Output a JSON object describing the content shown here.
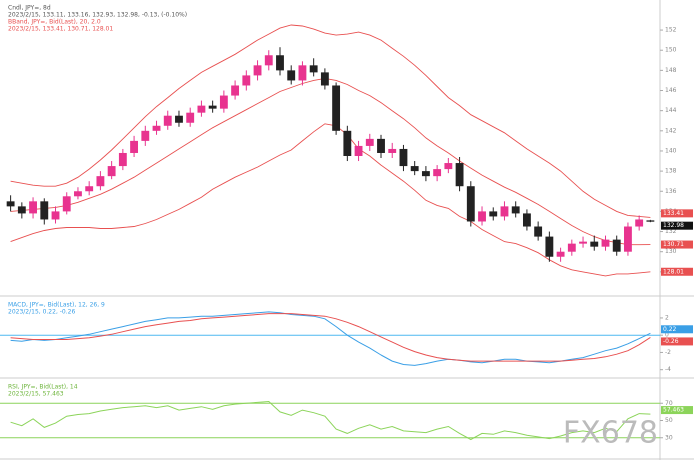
{
  "chart_data": [
    {
      "type": "candlestick",
      "title": "Cndl, JPY=, 8d",
      "subtitle": "2023/2/15, 133.11, 133.16, 132.93, 132.98, -0.13, (-0.10%)",
      "color_up": "#e8338f",
      "color_down": "#222222",
      "open": [
        135.0,
        134.5,
        133.8,
        135.0,
        133.2,
        134.0,
        135.5,
        136.0,
        136.5,
        137.5,
        138.5,
        139.8,
        141.0,
        142.0,
        142.5,
        143.5,
        142.8,
        143.8,
        144.5,
        144.2,
        145.5,
        146.5,
        147.5,
        148.5,
        149.5,
        148.0,
        147.0,
        148.5,
        147.8,
        146.5,
        142.0,
        139.5,
        140.5,
        141.2,
        139.8,
        140.2,
        138.5,
        138.0,
        137.5,
        138.2,
        138.8,
        136.5,
        133.0,
        134.0,
        133.5,
        134.5,
        133.8,
        132.5,
        131.5,
        129.5,
        130.0,
        130.8,
        131.0,
        130.5,
        131.2,
        130.0,
        132.5,
        133.11
      ],
      "high": [
        135.6,
        134.9,
        135.4,
        135.3,
        134.5,
        135.9,
        136.4,
        137.0,
        138.0,
        139.0,
        140.2,
        141.5,
        142.5,
        143.0,
        144.0,
        144.0,
        144.3,
        145.0,
        145.0,
        146.0,
        147.0,
        148.0,
        149.0,
        150.0,
        150.3,
        148.5,
        148.9,
        149.2,
        148.2,
        146.8,
        142.5,
        141.0,
        141.7,
        141.6,
        140.8,
        140.6,
        139.0,
        138.5,
        138.6,
        139.3,
        139.4,
        137.0,
        134.5,
        134.4,
        135.0,
        135.0,
        134.2,
        133.0,
        132.0,
        130.4,
        131.2,
        131.5,
        131.6,
        131.6,
        131.6,
        132.9,
        133.6,
        133.16
      ],
      "low": [
        134.0,
        133.3,
        133.3,
        132.7,
        132.8,
        133.7,
        135.2,
        135.6,
        136.1,
        137.2,
        138.1,
        139.4,
        140.5,
        141.6,
        142.1,
        142.4,
        142.4,
        143.4,
        143.8,
        143.8,
        145.1,
        146.0,
        147.0,
        148.0,
        147.5,
        146.6,
        146.5,
        147.4,
        146.1,
        141.6,
        139.0,
        139.0,
        140.0,
        139.3,
        139.3,
        138.0,
        137.6,
        137.0,
        137.0,
        137.8,
        136.0,
        132.5,
        132.6,
        133.1,
        133.1,
        133.4,
        132.1,
        131.1,
        129.0,
        129.0,
        129.6,
        130.4,
        130.1,
        130.1,
        129.6,
        129.6,
        132.1,
        132.93
      ],
      "close": [
        134.5,
        133.8,
        135.0,
        133.2,
        134.0,
        135.5,
        136.0,
        136.5,
        137.5,
        138.5,
        139.8,
        141.0,
        142.0,
        142.5,
        143.5,
        142.8,
        143.8,
        144.5,
        144.2,
        145.5,
        146.5,
        147.5,
        148.5,
        149.5,
        148.0,
        147.0,
        148.5,
        147.8,
        146.5,
        142.0,
        139.5,
        140.5,
        141.2,
        139.8,
        140.2,
        138.5,
        138.0,
        137.5,
        138.2,
        138.8,
        136.5,
        133.0,
        134.0,
        133.5,
        134.5,
        133.8,
        132.5,
        131.5,
        129.5,
        130.0,
        130.8,
        131.0,
        130.5,
        131.2,
        130.0,
        132.5,
        133.2,
        132.98
      ],
      "bands": {
        "name": "BBand, JPY=, Bid(Last), 20, 2.0",
        "info": "2023/2/15, 133.41, 130.71, 128.01",
        "color": "#e85050",
        "upper": [
          137.0,
          136.8,
          136.6,
          136.5,
          136.5,
          136.8,
          137.4,
          138.2,
          139.1,
          140.1,
          141.2,
          142.3,
          143.4,
          144.4,
          145.3,
          146.2,
          147.0,
          147.8,
          148.4,
          149.0,
          149.6,
          150.3,
          151.0,
          151.6,
          152.2,
          152.5,
          152.4,
          152.1,
          151.7,
          151.5,
          151.6,
          151.8,
          151.5,
          151.0,
          150.2,
          149.4,
          148.5,
          147.5,
          146.4,
          145.3,
          144.5,
          143.6,
          143.0,
          142.4,
          141.8,
          141.0,
          140.2,
          139.5,
          138.8,
          138.0,
          137.0,
          136.0,
          135.2,
          134.6,
          134.0,
          133.6,
          133.5,
          133.41
        ],
        "mid": [
          134.0,
          134.1,
          134.2,
          134.3,
          134.4,
          134.6,
          134.9,
          135.3,
          135.7,
          136.2,
          136.8,
          137.4,
          138.1,
          138.8,
          139.5,
          140.2,
          140.9,
          141.6,
          142.3,
          142.9,
          143.5,
          144.1,
          144.7,
          145.3,
          145.9,
          146.3,
          146.7,
          147.0,
          147.2,
          147.0,
          146.6,
          146.0,
          145.5,
          144.8,
          144.0,
          143.2,
          142.3,
          141.3,
          140.5,
          139.8,
          139.0,
          138.3,
          137.6,
          137.0,
          136.4,
          135.9,
          135.3,
          134.7,
          134.0,
          133.3,
          132.6,
          132.0,
          131.5,
          131.1,
          130.9,
          130.7,
          130.7,
          130.71
        ],
        "lower": [
          131.0,
          131.4,
          131.8,
          132.1,
          132.3,
          132.4,
          132.4,
          132.4,
          132.3,
          132.3,
          132.4,
          132.5,
          132.8,
          133.2,
          133.7,
          134.2,
          134.8,
          135.4,
          136.2,
          136.8,
          137.4,
          137.9,
          138.4,
          139.0,
          139.6,
          140.1,
          141.0,
          141.9,
          142.7,
          142.5,
          141.6,
          140.2,
          139.5,
          138.6,
          137.8,
          137.0,
          136.1,
          135.1,
          134.6,
          134.3,
          133.5,
          133.0,
          132.2,
          131.6,
          131.0,
          130.8,
          130.4,
          129.9,
          129.2,
          128.6,
          128.2,
          128.0,
          127.8,
          127.6,
          127.8,
          127.8,
          127.9,
          128.01
        ]
      },
      "ylim": [
        126,
        153
      ],
      "yticks": [
        128,
        130,
        132,
        134,
        136,
        138,
        140,
        142,
        144,
        146,
        148,
        150,
        152
      ]
    },
    {
      "type": "line",
      "title": "MACD, JPY=, Bid(Last), 12, 26, 9",
      "subtitle": "2023/2/15, 0.22, -0.26",
      "series": [
        {
          "color": "#3a9fe6",
          "values": [
            -0.6,
            -0.7,
            -0.5,
            -0.6,
            -0.5,
            -0.3,
            -0.1,
            0.1,
            0.4,
            0.7,
            1.0,
            1.3,
            1.6,
            1.8,
            2.0,
            2.0,
            2.1,
            2.2,
            2.2,
            2.3,
            2.4,
            2.5,
            2.6,
            2.7,
            2.6,
            2.4,
            2.3,
            2.2,
            1.9,
            1.0,
            0.0,
            -0.8,
            -1.5,
            -2.3,
            -3.0,
            -3.4,
            -3.5,
            -3.3,
            -3.0,
            -2.8,
            -2.9,
            -3.1,
            -3.2,
            -3.0,
            -2.8,
            -2.8,
            -3.0,
            -3.1,
            -3.2,
            -3.0,
            -2.8,
            -2.6,
            -2.2,
            -1.8,
            -1.5,
            -1.0,
            -0.4,
            0.22
          ]
        },
        {
          "color": "#e85050",
          "values": [
            -0.3,
            -0.4,
            -0.5,
            -0.5,
            -0.5,
            -0.5,
            -0.4,
            -0.3,
            -0.1,
            0.1,
            0.4,
            0.7,
            1.0,
            1.2,
            1.4,
            1.6,
            1.7,
            1.9,
            2.0,
            2.1,
            2.2,
            2.3,
            2.4,
            2.5,
            2.5,
            2.5,
            2.4,
            2.3,
            2.2,
            1.9,
            1.5,
            1.0,
            0.4,
            -0.2,
            -0.8,
            -1.4,
            -1.9,
            -2.3,
            -2.6,
            -2.8,
            -2.9,
            -3.0,
            -3.0,
            -3.0,
            -3.0,
            -3.0,
            -3.0,
            -3.0,
            -3.0,
            -3.0,
            -2.9,
            -2.8,
            -2.7,
            -2.5,
            -2.2,
            -1.8,
            -1.1,
            -0.26
          ]
        }
      ],
      "ylim": [
        -4.5,
        3.5
      ],
      "yticks": [
        -4,
        -2,
        0,
        2
      ],
      "reference_lines": [
        0
      ],
      "reference_color": "#4fb8f0"
    },
    {
      "type": "line",
      "title": "RSI, JPY=, Bid(Last), 14",
      "subtitle": "2023/2/15, 57.463",
      "series": [
        {
          "color": "#8cd45a",
          "values": [
            48,
            44,
            52,
            42,
            47,
            55,
            57,
            58,
            61,
            63,
            65,
            66,
            67,
            65,
            67,
            62,
            64,
            66,
            63,
            67,
            69,
            70,
            71,
            72,
            60,
            56,
            62,
            59,
            55,
            40,
            35,
            41,
            45,
            40,
            43,
            38,
            37,
            36,
            40,
            43,
            35,
            28,
            35,
            34,
            38,
            36,
            33,
            31,
            29,
            32,
            36,
            38,
            36,
            41,
            37,
            52,
            58,
            57.463
          ]
        }
      ],
      "ylim": [
        10,
        90
      ],
      "yticks": [
        30,
        50,
        70
      ],
      "reference_lines": [
        70,
        30
      ],
      "reference_color": "#8cd45a"
    }
  ],
  "watermark": "FX678"
}
